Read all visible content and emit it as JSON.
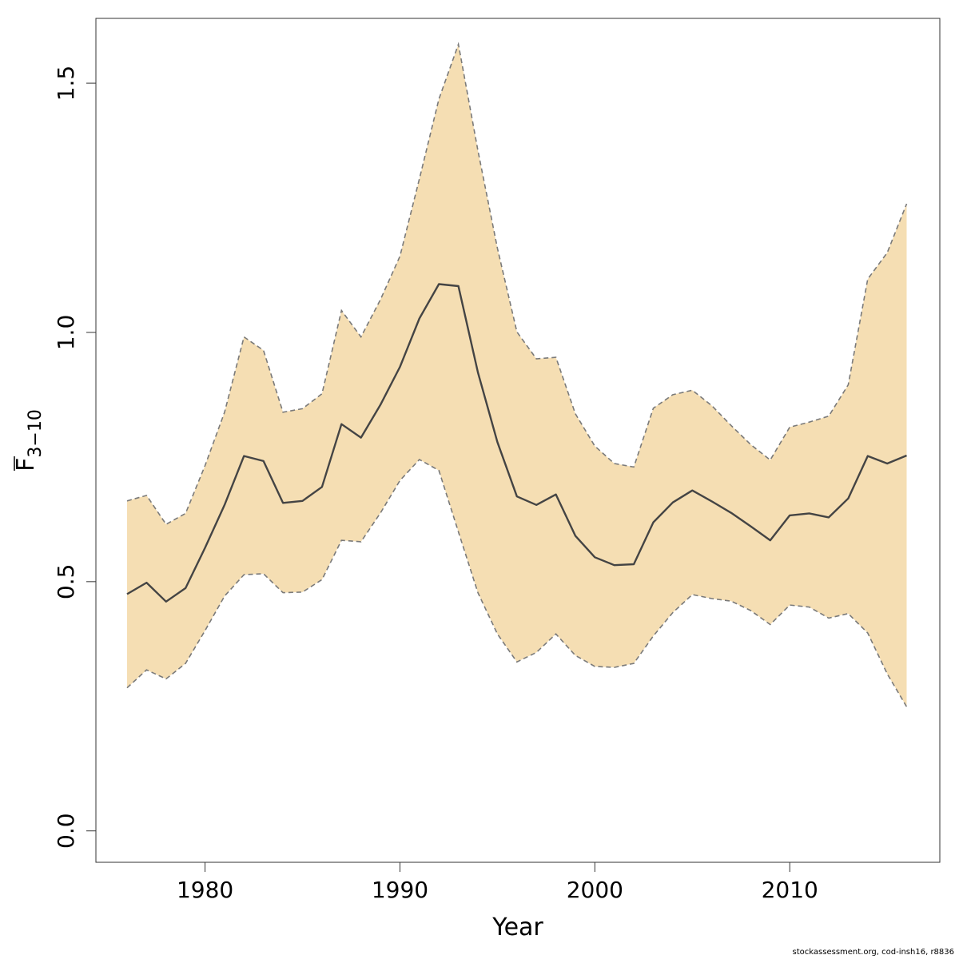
{
  "chart_data": {
    "type": "line",
    "title": "",
    "xlabel": "Year",
    "ylabel_main": "F",
    "ylabel_sub": "3−10",
    "xlim": [
      1974.4,
      2017.7
    ],
    "ylim": [
      -0.063,
      1.63
    ],
    "x_ticks": [
      "1980",
      "1990",
      "2000",
      "2010"
    ],
    "y_ticks": [
      "0.0",
      "0.5",
      "1.0",
      "1.5"
    ],
    "grid": false,
    "legend": "none",
    "colors": {
      "band": "#f5deb3",
      "line": "#444444",
      "bound": "#7a7a7a"
    },
    "x": [
      1976,
      1977,
      1978,
      1979,
      1980,
      1981,
      1982,
      1983,
      1984,
      1985,
      1986,
      1987,
      1988,
      1989,
      1990,
      1991,
      1992,
      1993,
      1994,
      1995,
      1996,
      1997,
      1998,
      1999,
      2000,
      2001,
      2002,
      2003,
      2004,
      2005,
      2006,
      2007,
      2008,
      2009,
      2010,
      2011,
      2012,
      2013,
      2014,
      2015,
      2016
    ],
    "series": [
      {
        "role": "estimate",
        "values": [
          0.475,
          0.498,
          0.46,
          0.487,
          0.568,
          0.654,
          0.752,
          0.742,
          0.658,
          0.662,
          0.69,
          0.816,
          0.789,
          0.855,
          0.931,
          1.028,
          1.097,
          1.093,
          0.92,
          0.78,
          0.671,
          0.654,
          0.675,
          0.592,
          0.549,
          0.533,
          0.535,
          0.619,
          0.659,
          0.683,
          0.661,
          0.638,
          0.611,
          0.583,
          0.633,
          0.637,
          0.629,
          0.667,
          0.752,
          0.737,
          0.753
        ]
      },
      {
        "role": "upper",
        "values": [
          0.662,
          0.673,
          0.615,
          0.637,
          0.733,
          0.84,
          0.991,
          0.964,
          0.84,
          0.847,
          0.877,
          1.044,
          0.991,
          1.066,
          1.153,
          1.308,
          1.468,
          1.578,
          1.365,
          1.169,
          1.001,
          0.947,
          0.95,
          0.837,
          0.772,
          0.737,
          0.73,
          0.848,
          0.875,
          0.884,
          0.853,
          0.813,
          0.775,
          0.744,
          0.81,
          0.82,
          0.832,
          0.895,
          1.107,
          1.16,
          1.258
        ]
      },
      {
        "role": "lower",
        "values": [
          0.287,
          0.323,
          0.305,
          0.336,
          0.402,
          0.471,
          0.514,
          0.516,
          0.478,
          0.479,
          0.504,
          0.583,
          0.58,
          0.638,
          0.703,
          0.745,
          0.723,
          0.6,
          0.478,
          0.395,
          0.339,
          0.358,
          0.395,
          0.352,
          0.33,
          0.328,
          0.336,
          0.391,
          0.438,
          0.474,
          0.466,
          0.461,
          0.442,
          0.414,
          0.453,
          0.449,
          0.427,
          0.436,
          0.397,
          0.315,
          0.249
        ]
      }
    ]
  },
  "footer": {
    "credit": "stockassessment.org, cod-insh16, r8836"
  }
}
